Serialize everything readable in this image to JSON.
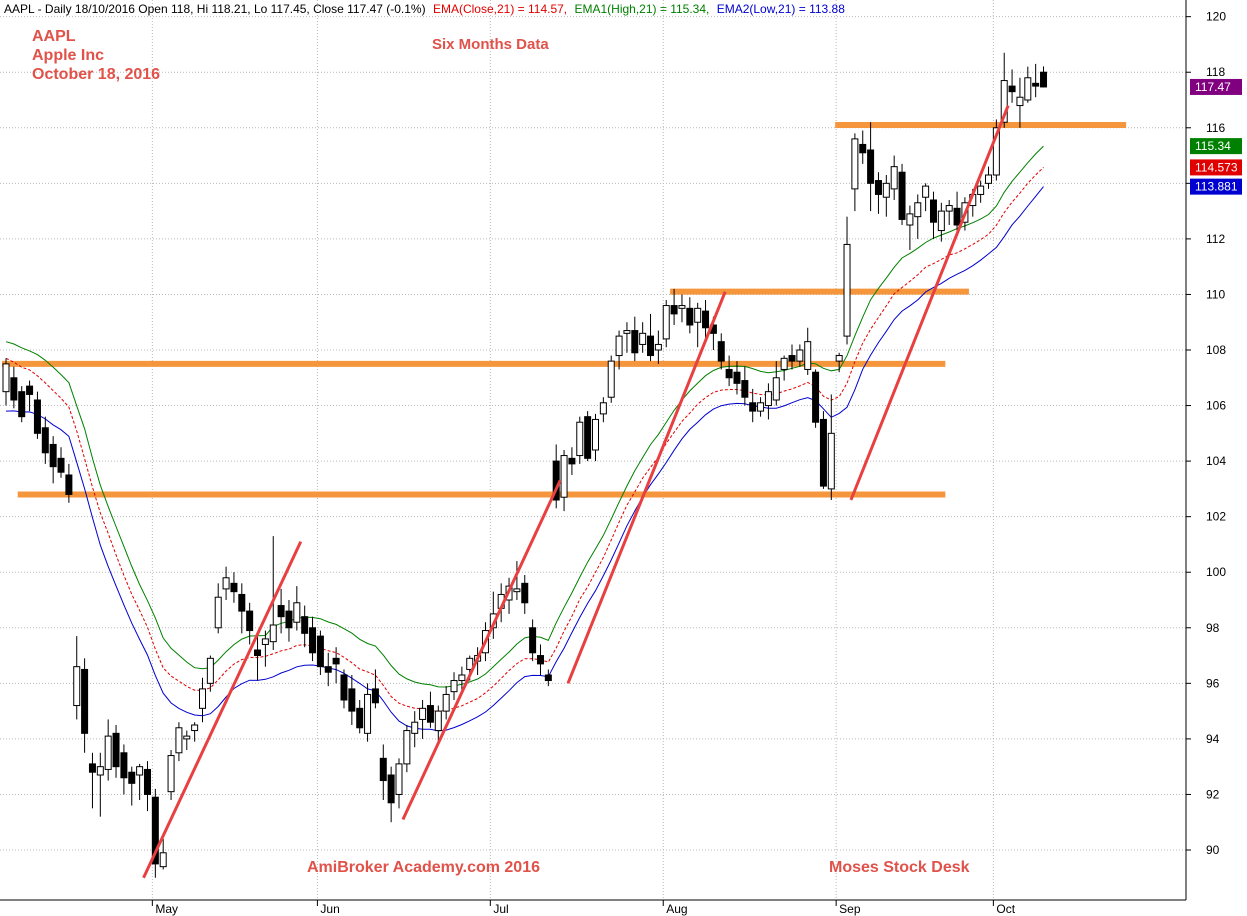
{
  "header": {
    "prefix": "AAPL - Daily 18/10/2016 Open 118, Hi 118.21, Lo 117.45, Close 117.47 (-0.1%)",
    "ema_close": "EMA(Close,21) = 114.57,",
    "ema_high": "EMA1(High,21) = 115.34,",
    "ema_low": "EMA2(Low,21) = 113.88"
  },
  "annotations": {
    "ticker": "AAPL",
    "company": "Apple Inc",
    "date": "October 18, 2016",
    "six_months": "Six Months Data",
    "watermark": "AmiBroker Academy.com  2016",
    "desk": "Moses Stock Desk"
  },
  "colors": {
    "ema_close": "#e00000",
    "ema_high": "#008000",
    "ema_low": "#0000d0",
    "support": "#f5963c",
    "trend": "#e84040",
    "close_badge": "#800080"
  },
  "chart_data": {
    "type": "candlestick",
    "title": "AAPL - Daily 18/10/2016",
    "ylim": [
      88.2,
      120.6
    ],
    "y_ticks": [
      90,
      92,
      94,
      96,
      98,
      100,
      102,
      104,
      106,
      108,
      110,
      112,
      114,
      116,
      118,
      120
    ],
    "month_labels": [
      "May",
      "Jun",
      "Jul",
      "Aug",
      "Sep",
      "Oct"
    ],
    "month_start_index": [
      19,
      40,
      62,
      84,
      106,
      126
    ],
    "candles": [
      [
        106.5,
        107.7,
        106.0,
        107.5
      ],
      [
        107.0,
        107.4,
        105.9,
        106.2
      ],
      [
        106.5,
        106.7,
        105.4,
        105.6
      ],
      [
        106.7,
        106.9,
        105.8,
        106.4
      ],
      [
        106.2,
        106.5,
        104.8,
        105.0
      ],
      [
        105.2,
        105.6,
        103.9,
        104.3
      ],
      [
        104.6,
        104.9,
        103.2,
        103.8
      ],
      [
        104.1,
        104.5,
        103.4,
        103.6
      ],
      [
        103.5,
        103.9,
        102.5,
        102.8
      ],
      [
        95.2,
        97.7,
        94.7,
        96.6
      ],
      [
        96.5,
        96.9,
        93.5,
        94.2
      ],
      [
        93.1,
        93.5,
        91.5,
        92.8
      ],
      [
        92.7,
        93.5,
        91.2,
        93.0
      ],
      [
        92.9,
        94.7,
        92.5,
        94.1
      ],
      [
        94.2,
        94.5,
        92.6,
        93.0
      ],
      [
        93.5,
        93.8,
        92.0,
        92.6
      ],
      [
        92.8,
        93.0,
        91.6,
        92.4
      ],
      [
        92.7,
        93.1,
        91.8,
        93.0
      ],
      [
        92.9,
        93.2,
        91.4,
        92.0
      ],
      [
        91.9,
        92.2,
        89.0,
        89.5
      ],
      [
        89.4,
        90.4,
        89.3,
        89.9
      ],
      [
        92.1,
        93.6,
        91.8,
        93.4
      ],
      [
        93.5,
        94.6,
        93.2,
        94.4
      ],
      [
        94.0,
        94.3,
        93.6,
        94.1
      ],
      [
        94.3,
        94.6,
        93.9,
        94.5
      ],
      [
        95.1,
        96.2,
        94.6,
        95.8
      ],
      [
        96.0,
        97.0,
        95.7,
        96.9
      ],
      [
        98.0,
        99.6,
        97.8,
        99.1
      ],
      [
        99.4,
        100.2,
        99.0,
        99.8
      ],
      [
        99.6,
        100.0,
        98.9,
        99.3
      ],
      [
        99.2,
        99.6,
        97.8,
        98.6
      ],
      [
        98.6,
        98.9,
        97.4,
        97.9
      ],
      [
        97.2,
        97.8,
        96.1,
        97.0
      ],
      [
        97.4,
        97.9,
        96.6,
        97.6
      ],
      [
        97.5,
        101.3,
        97.2,
        98.1
      ],
      [
        98.8,
        99.4,
        97.8,
        98.4
      ],
      [
        98.6,
        99.0,
        97.5,
        98.0
      ],
      [
        98.2,
        99.5,
        97.9,
        98.9
      ],
      [
        98.4,
        98.8,
        97.3,
        97.8
      ],
      [
        98.0,
        98.4,
        96.8,
        97.1
      ],
      [
        97.7,
        97.9,
        96.3,
        96.6
      ],
      [
        96.6,
        97.1,
        95.9,
        96.4
      ],
      [
        96.9,
        97.3,
        96.0,
        96.7
      ],
      [
        96.3,
        96.5,
        95.1,
        95.4
      ],
      [
        95.8,
        96.3,
        94.5,
        95.0
      ],
      [
        95.1,
        95.4,
        94.2,
        94.4
      ],
      [
        94.2,
        96.0,
        93.9,
        95.6
      ],
      [
        95.8,
        96.5,
        95.1,
        95.3
      ],
      [
        93.3,
        93.8,
        91.8,
        92.5
      ],
      [
        92.7,
        93.0,
        91.0,
        91.7
      ],
      [
        92.0,
        93.3,
        91.5,
        93.1
      ],
      [
        93.1,
        94.5,
        92.8,
        94.3
      ],
      [
        94.2,
        95.0,
        93.7,
        94.6
      ],
      [
        94.7,
        95.4,
        94.0,
        95.1
      ],
      [
        95.2,
        95.7,
        94.4,
        94.6
      ],
      [
        94.3,
        95.2,
        93.8,
        95.0
      ],
      [
        95.0,
        95.9,
        94.7,
        95.6
      ],
      [
        95.7,
        96.4,
        95.4,
        96.1
      ],
      [
        96.1,
        96.6,
        95.7,
        96.3
      ],
      [
        96.5,
        97.0,
        96.1,
        96.9
      ],
      [
        96.8,
        97.3,
        96.3,
        97.0
      ],
      [
        97.1,
        98.2,
        96.8,
        97.9
      ],
      [
        98.0,
        99.3,
        97.6,
        98.5
      ],
      [
        98.7,
        99.6,
        98.2,
        99.2
      ],
      [
        99.0,
        99.8,
        98.5,
        99.5
      ],
      [
        99.3,
        100.4,
        99.0,
        99.4
      ],
      [
        99.6,
        99.9,
        98.5,
        98.9
      ],
      [
        98.0,
        98.3,
        96.8,
        97.1
      ],
      [
        97.0,
        97.4,
        96.3,
        96.7
      ],
      [
        96.3,
        96.5,
        95.9,
        96.1
      ],
      [
        104.0,
        104.6,
        102.3,
        102.6
      ],
      [
        102.7,
        104.4,
        102.2,
        104.2
      ],
      [
        104.1,
        104.5,
        103.5,
        103.9
      ],
      [
        104.2,
        105.6,
        103.9,
        105.4
      ],
      [
        105.6,
        105.8,
        104.0,
        104.1
      ],
      [
        104.4,
        105.7,
        104.0,
        105.5
      ],
      [
        105.7,
        106.3,
        105.4,
        106.1
      ],
      [
        106.3,
        107.8,
        106.1,
        107.6
      ],
      [
        107.8,
        108.7,
        107.3,
        108.5
      ],
      [
        108.6,
        109.0,
        107.9,
        108.7
      ],
      [
        108.7,
        109.2,
        107.6,
        107.9
      ],
      [
        108.2,
        109.0,
        107.9,
        108.6
      ],
      [
        108.5,
        109.3,
        107.6,
        107.8
      ],
      [
        108.0,
        108.7,
        107.5,
        108.2
      ],
      [
        108.4,
        109.8,
        108.1,
        109.6
      ],
      [
        109.6,
        110.2,
        108.9,
        109.3
      ],
      [
        109.5,
        110.0,
        109.0,
        109.6
      ],
      [
        109.5,
        109.9,
        108.6,
        108.9
      ],
      [
        109.0,
        109.7,
        108.1,
        109.5
      ],
      [
        109.4,
        109.8,
        108.4,
        108.8
      ],
      [
        108.9,
        109.2,
        108.0,
        108.6
      ],
      [
        108.3,
        108.6,
        107.3,
        107.6
      ],
      [
        107.3,
        107.8,
        106.7,
        107.0
      ],
      [
        107.2,
        107.6,
        106.4,
        106.8
      ],
      [
        106.9,
        107.4,
        106.0,
        106.3
      ],
      [
        106.1,
        106.6,
        105.4,
        105.8
      ],
      [
        105.8,
        106.3,
        105.6,
        106.1
      ],
      [
        106.0,
        106.8,
        105.5,
        106.5
      ],
      [
        106.2,
        107.6,
        106.0,
        107.0
      ],
      [
        107.3,
        107.8,
        106.9,
        107.7
      ],
      [
        107.8,
        108.2,
        107.3,
        107.6
      ],
      [
        107.6,
        108.2,
        107.4,
        108.0
      ],
      [
        107.3,
        108.8,
        107.1,
        108.3
      ],
      [
        107.2,
        107.3,
        105.2,
        105.4
      ],
      [
        105.5,
        105.8,
        103.0,
        103.1
      ],
      [
        103.0,
        106.4,
        102.6,
        105.0
      ],
      [
        107.6,
        107.9,
        107.2,
        107.8
      ],
      [
        108.5,
        112.8,
        108.2,
        111.8
      ],
      [
        113.8,
        115.8,
        113.0,
        115.6
      ],
      [
        115.4,
        115.9,
        114.7,
        115.1
      ],
      [
        115.2,
        116.2,
        113.0,
        114.0
      ],
      [
        114.1,
        114.4,
        112.9,
        113.6
      ],
      [
        113.5,
        114.3,
        112.8,
        114.0
      ],
      [
        113.8,
        115.0,
        113.4,
        114.6
      ],
      [
        114.4,
        114.7,
        112.5,
        112.7
      ],
      [
        112.5,
        113.2,
        111.6,
        112.9
      ],
      [
        112.8,
        113.6,
        112.0,
        113.3
      ],
      [
        113.5,
        114.0,
        113.0,
        113.9
      ],
      [
        113.4,
        113.7,
        112.0,
        112.6
      ],
      [
        112.3,
        113.3,
        111.9,
        113.0
      ],
      [
        113.0,
        113.4,
        112.5,
        113.2
      ],
      [
        113.1,
        113.7,
        112.3,
        112.5
      ],
      [
        112.6,
        113.5,
        112.3,
        113.3
      ],
      [
        113.2,
        113.8,
        112.8,
        113.6
      ],
      [
        113.6,
        114.1,
        113.3,
        113.9
      ],
      [
        114.0,
        114.6,
        113.8,
        114.3
      ],
      [
        114.3,
        116.3,
        114.1,
        116.0
      ],
      [
        116.2,
        118.7,
        116.0,
        117.7
      ],
      [
        117.5,
        118.1,
        116.9,
        117.3
      ],
      [
        116.8,
        117.8,
        116.0,
        117.1
      ],
      [
        117.0,
        118.2,
        116.9,
        117.8
      ],
      [
        117.6,
        118.3,
        117.1,
        117.5
      ],
      [
        118.0,
        118.21,
        117.45,
        117.47
      ]
    ],
    "ema_close_end": 114.573,
    "ema_high_end": 115.34,
    "ema_low_end": 113.881,
    "last_close": 117.47,
    "support_levels": [
      {
        "value": 102.8,
        "from": 2,
        "to": 119
      },
      {
        "value": 107.5,
        "from": 0,
        "to": 119
      },
      {
        "value": 110.1,
        "from": 85,
        "to": 122
      },
      {
        "value": 116.1,
        "from": 106,
        "to": 142
      }
    ],
    "trend_lines": [
      [
        {
          "i": 17.5,
          "v": 89.0
        },
        {
          "i": 37.5,
          "v": 101.1
        }
      ],
      [
        {
          "i": 50.5,
          "v": 91.1
        },
        {
          "i": 70.5,
          "v": 103.3
        }
      ],
      [
        {
          "i": 71.5,
          "v": 96.0
        },
        {
          "i": 91.5,
          "v": 110.1
        }
      ],
      [
        {
          "i": 107.5,
          "v": 102.6
        },
        {
          "i": 127.5,
          "v": 116.8
        }
      ]
    ]
  }
}
